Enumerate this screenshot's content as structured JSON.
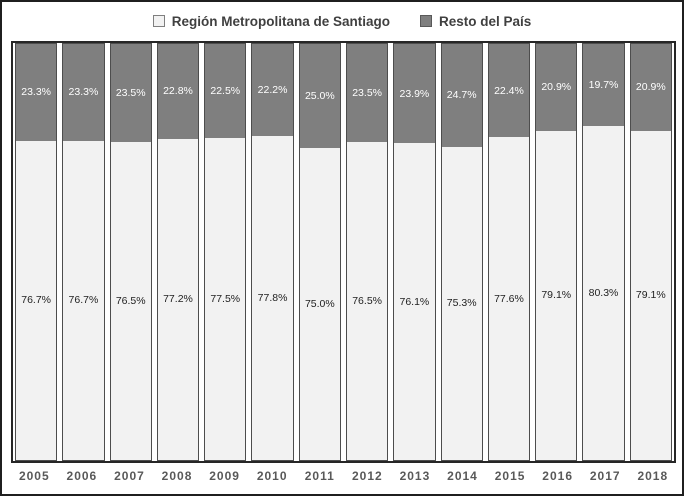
{
  "legend": {
    "items": [
      {
        "label": "Región Metropolitana de Santiago",
        "swatch_fill": "#f2f2f2",
        "swatch_border": "#7f7f7f"
      },
      {
        "label": "Resto del País",
        "swatch_fill": "#7f7f7f",
        "swatch_border": "#595959"
      }
    ]
  },
  "colors": {
    "rm_fill": "#f2f2f2",
    "resto_fill": "#7f7f7f",
    "bar_border": "#4d4d4d",
    "plot_border": "#262626",
    "frame_border": "#1f1f1f",
    "label_on_gray": "#ffffff",
    "label_on_light": "#1f1f1f",
    "axis_text": "#595959"
  },
  "chart_data": {
    "type": "bar",
    "subtype": "stacked-100",
    "orientation": "vertical",
    "title": "",
    "xlabel": "",
    "ylabel": "",
    "ylim": [
      0,
      100
    ],
    "gridlines": false,
    "legend_position": "top",
    "data_labels": "center",
    "categories": [
      "2005",
      "2006",
      "2007",
      "2008",
      "2009",
      "2010",
      "2011",
      "2012",
      "2013",
      "2014",
      "2015",
      "2016",
      "2017",
      "2018"
    ],
    "series": [
      {
        "name": "Región Metropolitana de Santiago",
        "stack_position": "bottom",
        "color": "#f2f2f2",
        "values": [
          76.7,
          76.7,
          76.5,
          77.2,
          77.5,
          77.8,
          75.0,
          76.5,
          76.1,
          75.3,
          77.6,
          79.1,
          80.3,
          79.1
        ],
        "labels": [
          "76.7%",
          "76.7%",
          "76.5%",
          "77.2%",
          "77.5%",
          "77.8%",
          "75.0%",
          "76.5%",
          "76.1%",
          "75.3%",
          "77.6%",
          "79.1%",
          "80.3%",
          "79.1%"
        ]
      },
      {
        "name": "Resto del País",
        "stack_position": "top",
        "color": "#7f7f7f",
        "values": [
          23.3,
          23.3,
          23.5,
          22.8,
          22.5,
          22.2,
          25.0,
          23.5,
          23.9,
          24.7,
          22.4,
          20.9,
          19.7,
          20.9
        ],
        "labels": [
          "23.3%",
          "23.3%",
          "23.5%",
          "22.8%",
          "22.5%",
          "22.2%",
          "25.0%",
          "23.5%",
          "23.9%",
          "24.7%",
          "22.4%",
          "20.9%",
          "19.7%",
          "20.9%"
        ]
      }
    ]
  }
}
